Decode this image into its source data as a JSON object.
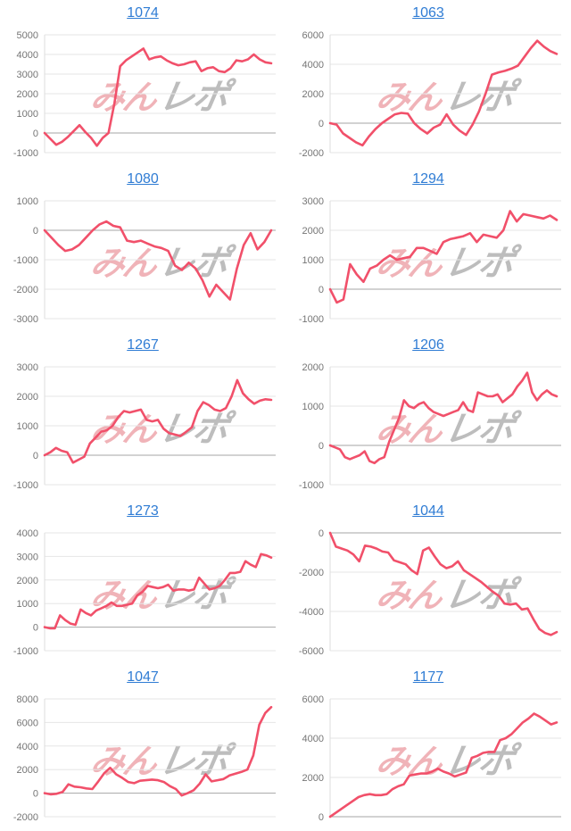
{
  "watermark": {
    "pink_text": "みん",
    "gray_text": "レポ"
  },
  "styles": {
    "line_color": "#f1506a",
    "title_link_color": "#2f7cd4",
    "grid_color": "#e6e6e6",
    "zero_line_color": "#a6a6a6",
    "axis_line_color": "#dddddd",
    "label_color": "#757575"
  },
  "chart_data": [
    {
      "type": "line",
      "title": "1074",
      "xlabel": "",
      "ylabel": "",
      "ylim": [
        -1000,
        5000
      ],
      "ytick_step": 1000,
      "grid": true,
      "legend": "none",
      "values": [
        0,
        -300,
        -600,
        -450,
        -200,
        100,
        400,
        50,
        -250,
        -650,
        -250,
        0,
        1500,
        3400,
        3700,
        3900,
        4100,
        4300,
        3750,
        3850,
        3900,
        3700,
        3550,
        3450,
        3500,
        3600,
        3650,
        3150,
        3300,
        3350,
        3150,
        3100,
        3300,
        3700,
        3650,
        3750,
        4000,
        3750,
        3600,
        3550
      ]
    },
    {
      "type": "line",
      "title": "1063",
      "xlabel": "",
      "ylabel": "",
      "ylim": [
        -2000,
        6000
      ],
      "ytick_step": 2000,
      "grid": true,
      "legend": "none",
      "values": [
        0,
        -100,
        -700,
        -1000,
        -1300,
        -1500,
        -900,
        -400,
        0,
        300,
        600,
        700,
        650,
        0,
        -400,
        -700,
        -300,
        -100,
        600,
        -100,
        -500,
        -800,
        -100,
        800,
        2000,
        3300,
        3450,
        3550,
        3700,
        3900,
        4500,
        5100,
        5600,
        5200,
        4900,
        4700
      ]
    },
    {
      "type": "line",
      "title": "1080",
      "xlabel": "",
      "ylabel": "",
      "ylim": [
        -3000,
        1000
      ],
      "ytick_step": 1000,
      "grid": true,
      "legend": "none",
      "values": [
        0,
        -250,
        -500,
        -700,
        -650,
        -500,
        -250,
        0,
        200,
        300,
        150,
        100,
        -350,
        -400,
        -350,
        -450,
        -550,
        -600,
        -700,
        -1200,
        -1350,
        -1100,
        -1300,
        -1700,
        -2250,
        -1850,
        -2100,
        -2350,
        -1300,
        -500,
        -100,
        -650,
        -400,
        0
      ]
    },
    {
      "type": "line",
      "title": "1294",
      "xlabel": "",
      "ylabel": "",
      "ylim": [
        -1000,
        3000
      ],
      "ytick_step": 1000,
      "grid": true,
      "legend": "none",
      "values": [
        0,
        -450,
        -350,
        850,
        500,
        250,
        700,
        800,
        1000,
        1150,
        1000,
        1050,
        1100,
        1400,
        1400,
        1300,
        1200,
        1600,
        1700,
        1750,
        1800,
        1900,
        1600,
        1850,
        1800,
        1750,
        2000,
        2650,
        2300,
        2550,
        2500,
        2450,
        2400,
        2500,
        2350
      ]
    },
    {
      "type": "line",
      "title": "1267",
      "xlabel": "",
      "ylabel": "",
      "ylim": [
        -1000,
        3000
      ],
      "ytick_step": 1000,
      "grid": true,
      "legend": "none",
      "values": [
        0,
        100,
        250,
        150,
        100,
        -250,
        -150,
        -50,
        400,
        600,
        800,
        850,
        1000,
        1300,
        1500,
        1450,
        1500,
        1550,
        1200,
        1150,
        1200,
        900,
        750,
        700,
        650,
        800,
        950,
        1500,
        1800,
        1700,
        1550,
        1500,
        1600,
        2000,
        2550,
        2100,
        1900,
        1750,
        1850,
        1900,
        1880
      ]
    },
    {
      "type": "line",
      "title": "1206",
      "xlabel": "",
      "ylabel": "",
      "ylim": [
        -1000,
        2000
      ],
      "ytick_step": 1000,
      "grid": true,
      "legend": "none",
      "values": [
        0,
        -50,
        -100,
        -300,
        -350,
        -300,
        -250,
        -150,
        -400,
        -450,
        -350,
        -300,
        100,
        400,
        700,
        1150,
        1000,
        950,
        1050,
        1100,
        950,
        850,
        800,
        750,
        800,
        850,
        900,
        1100,
        900,
        850,
        1350,
        1300,
        1250,
        1250,
        1300,
        1100,
        1200,
        1300,
        1500,
        1650,
        1850,
        1350,
        1150,
        1300,
        1400,
        1300,
        1250
      ]
    },
    {
      "type": "line",
      "title": "1273",
      "xlabel": "",
      "ylabel": "",
      "ylim": [
        -1000,
        4000
      ],
      "ytick_step": 1000,
      "grid": true,
      "legend": "none",
      "values": [
        0,
        -50,
        -50,
        500,
        300,
        150,
        100,
        750,
        600,
        500,
        700,
        800,
        900,
        1050,
        900,
        900,
        950,
        1000,
        1350,
        1500,
        1750,
        1700,
        1650,
        1700,
        1800,
        1550,
        1600,
        1600,
        1550,
        1600,
        2100,
        1850,
        1600,
        1650,
        1750,
        2000,
        2300,
        2300,
        2350,
        2800,
        2650,
        2550,
        3100,
        3050,
        2950
      ]
    },
    {
      "type": "line",
      "title": "1044",
      "xlabel": "",
      "ylabel": "",
      "ylim": [
        -6000,
        0
      ],
      "ytick_step": 2000,
      "grid": true,
      "legend": "none",
      "values": [
        0,
        -700,
        -800,
        -900,
        -1100,
        -1450,
        -650,
        -700,
        -800,
        -950,
        -1000,
        -1400,
        -1500,
        -1600,
        -1900,
        -2100,
        -900,
        -750,
        -1200,
        -1600,
        -1800,
        -1700,
        -1450,
        -1900,
        -2100,
        -2300,
        -2500,
        -2750,
        -3000,
        -3200,
        -3600,
        -3650,
        -3600,
        -3900,
        -3850,
        -4400,
        -4900,
        -5100,
        -5200,
        -5050
      ]
    },
    {
      "type": "line",
      "title": "1047",
      "xlabel": "",
      "ylabel": "",
      "ylim": [
        -2000,
        8000
      ],
      "ytick_step": 2000,
      "grid": true,
      "legend": "none",
      "values": [
        0,
        -100,
        -50,
        100,
        750,
        550,
        500,
        400,
        350,
        1000,
        1700,
        2150,
        1600,
        1300,
        950,
        850,
        1050,
        1100,
        1150,
        1100,
        950,
        600,
        350,
        -200,
        0,
        250,
        800,
        1600,
        1000,
        1100,
        1200,
        1500,
        1650,
        1800,
        2000,
        3200,
        5800,
        6800,
        7300
      ]
    },
    {
      "type": "line",
      "title": "1177",
      "xlabel": "",
      "ylabel": "",
      "ylim": [
        0,
        6000
      ],
      "ytick_step": 2000,
      "grid": true,
      "legend": "none",
      "values": [
        0,
        200,
        400,
        600,
        800,
        1000,
        1100,
        1150,
        1100,
        1100,
        1150,
        1400,
        1550,
        1650,
        2100,
        2150,
        2200,
        2200,
        2300,
        2450,
        2300,
        2200,
        2050,
        2150,
        2250,
        3000,
        3100,
        3250,
        3300,
        3300,
        3900,
        4000,
        4200,
        4500,
        4800,
        5000,
        5250,
        5100,
        4900,
        4700,
        4800
      ]
    }
  ]
}
